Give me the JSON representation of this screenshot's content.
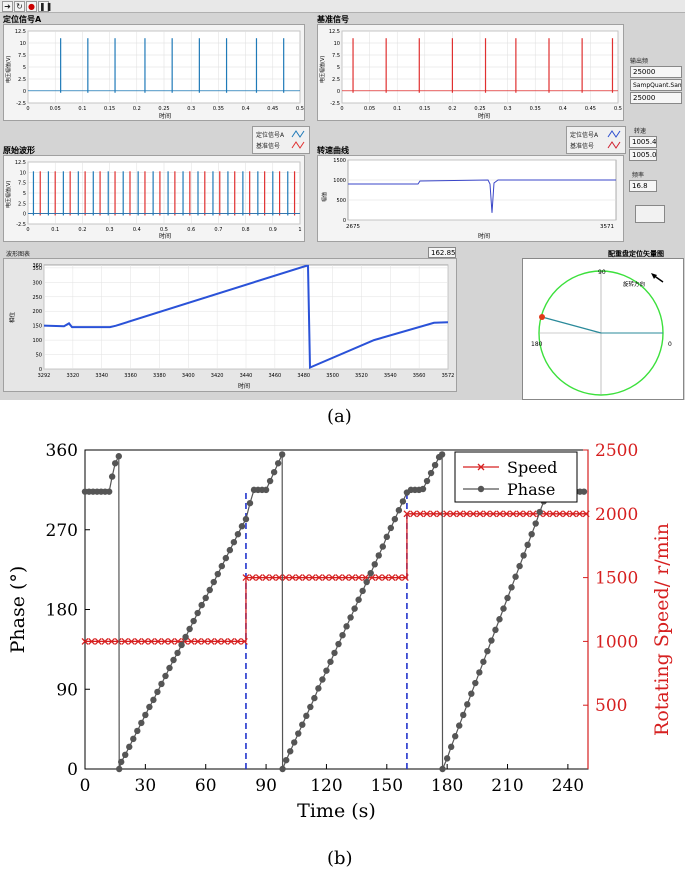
{
  "panel_a": {
    "toolbar": {
      "run_icon": "arrow-right-icon",
      "cont_icon": "run-continuous-icon",
      "abort_icon": "stop-icon",
      "pause_icon": "pause-icon"
    },
    "signal_a": {
      "title": "定位信号A",
      "ylabel": "电压幅值(V)",
      "xlabel": "时间",
      "yticks": [
        "12.5",
        "10",
        "7.5",
        "5",
        "2.5",
        "0",
        "-2.5"
      ],
      "xticks": [
        "0",
        "0.05",
        "0.1",
        "0.15",
        "0.2",
        "0.25",
        "0.3",
        "0.35",
        "0.4",
        "0.45",
        "0.5"
      ]
    },
    "reference": {
      "title": "基准信号",
      "ylabel": "电压幅值(V)",
      "xlabel": "时间",
      "yticks": [
        "12.5",
        "10",
        "7.5",
        "5",
        "2.5",
        "0",
        "-2.5"
      ],
      "xticks": [
        "0",
        "0.05",
        "0.1",
        "0.15",
        "0.2",
        "0.25",
        "0.3",
        "0.35",
        "0.4",
        "0.45",
        "0.5"
      ]
    },
    "settings": {
      "label": "输出频",
      "val1": "25000",
      "val2": "SampQuant.Samp",
      "val3": "25000"
    },
    "raw": {
      "title": "原始波形",
      "ylabel": "电压幅值(V)",
      "xlabel": "时间",
      "yticks": [
        "12.5",
        "10",
        "7.5",
        "5",
        "2.5",
        "0",
        "-2.5"
      ],
      "xticks": [
        "0",
        "0.1",
        "0.2",
        "0.3",
        "0.4",
        "0.5",
        "0.6",
        "0.7",
        "0.8",
        "0.9",
        "1"
      ]
    },
    "legend1": {
      "a": "定位信号A",
      "b": "基准信号"
    },
    "speed_curve": {
      "title": "转速曲线",
      "ylabel": "幅值",
      "xlabel": "时间",
      "yticks": [
        "1500",
        "1000",
        "500",
        "0"
      ],
      "xmin": "2675",
      "xmax": "3571"
    },
    "legend2": {
      "a": "定位信号A",
      "b": "基准信号"
    },
    "speed_box": {
      "label": "转速",
      "v1": "1005.4",
      "v2": "1005.0"
    },
    "freq_box": {
      "label": "频率",
      "v": "16.8"
    },
    "phase_graph": {
      "title": "波形图表",
      "ylabel": "相位",
      "xlabel": "时间",
      "readout": "162.85",
      "yticks": [
        "360",
        "350",
        "300",
        "250",
        "200",
        "150",
        "100",
        "50",
        "0"
      ],
      "xticks": [
        "3292",
        "3320",
        "3340",
        "3360",
        "3380",
        "3400",
        "3420",
        "3440",
        "3460",
        "3480",
        "3500",
        "3520",
        "3540",
        "3560",
        "3572"
      ]
    },
    "vector": {
      "title": "配重盘定位矢量图",
      "l90": "90",
      "l180": "180",
      "l0": "0",
      "dir": "旋转方向"
    },
    "caption": "(a)"
  },
  "caption_b": "(b)",
  "chart_data": {
    "type": "line",
    "title": "",
    "xlabel": "Time (s)",
    "ylabel": "Phase (°)",
    "y2label": "Rotating Speed/ r/min",
    "xlim": [
      0,
      250
    ],
    "ylim": [
      0,
      360
    ],
    "y2lim": [
      0,
      2500
    ],
    "xticks": [
      0,
      30,
      60,
      90,
      120,
      150,
      180,
      210,
      240
    ],
    "yticks": [
      0,
      90,
      180,
      270,
      360
    ],
    "y2ticks": [
      500,
      1000,
      1500,
      2000,
      2500
    ],
    "legend_position": "top-right",
    "colors": {
      "speed": "#d62020",
      "phase": "#555555",
      "dashed": "#2233cc"
    },
    "series": [
      {
        "name": "Speed",
        "axis": "right",
        "marker": "x",
        "x": [
          0,
          80,
          80,
          160,
          160,
          250
        ],
        "y": [
          1000,
          1000,
          1500,
          1500,
          2000,
          2000
        ]
      },
      {
        "name": "Phase",
        "axis": "left",
        "marker": "circle",
        "x": [
          0,
          2,
          4,
          6,
          8,
          10,
          12,
          13.5,
          15,
          16.8,
          17,
          18,
          20,
          22,
          24,
          26,
          28,
          30,
          32,
          34,
          36,
          38,
          40,
          42,
          44,
          46,
          48,
          50,
          52,
          54,
          56,
          58,
          60,
          62,
          64,
          66,
          68,
          70,
          72,
          74,
          76,
          78,
          80,
          82,
          84,
          86,
          88,
          90,
          92,
          94,
          96,
          98,
          98.2,
          100,
          102,
          104,
          106,
          108,
          110,
          112,
          114,
          116,
          118,
          120,
          122,
          124,
          126,
          128,
          130,
          132,
          134,
          136,
          138,
          140,
          142,
          144,
          146,
          148,
          150,
          152,
          154,
          156,
          158,
          160,
          162,
          164,
          166,
          168,
          170,
          172,
          174,
          176,
          177.5,
          177.7,
          180,
          182,
          184,
          186,
          188,
          190,
          192,
          194,
          196,
          198,
          200,
          202,
          204,
          206,
          208,
          210,
          212,
          214,
          216,
          218,
          220,
          222,
          224,
          226,
          228,
          230,
          232,
          234,
          236,
          238,
          240,
          242,
          244,
          246,
          248
        ],
        "y": [
          313,
          313,
          313,
          313,
          313,
          313,
          313,
          330,
          345,
          353,
          0,
          8,
          16,
          25,
          34,
          43,
          52,
          61,
          70,
          78,
          87,
          96,
          105,
          114,
          123,
          131,
          140,
          149,
          158,
          167,
          176,
          185,
          193,
          202,
          211,
          220,
          229,
          238,
          247,
          256,
          265,
          274,
          282,
          300,
          315,
          315,
          315,
          315,
          325,
          335,
          345,
          355,
          0,
          10,
          20,
          30,
          40,
          50,
          60,
          70,
          80,
          91,
          101,
          111,
          121,
          131,
          141,
          151,
          161,
          171,
          181,
          191,
          201,
          211,
          221,
          231,
          241,
          251,
          262,
          272,
          282,
          292,
          302,
          312,
          315,
          315,
          315,
          316,
          325,
          334,
          343,
          352,
          355,
          0,
          12,
          25,
          37,
          49,
          61,
          73,
          85,
          97,
          109,
          121,
          133,
          145,
          157,
          169,
          181,
          193,
          205,
          217,
          229,
          241,
          253,
          265,
          277,
          290,
          302,
          313,
          313,
          313,
          313,
          313,
          313,
          313,
          313,
          313,
          313
        ]
      }
    ],
    "dashed_lines_x": [
      80,
      160
    ]
  }
}
